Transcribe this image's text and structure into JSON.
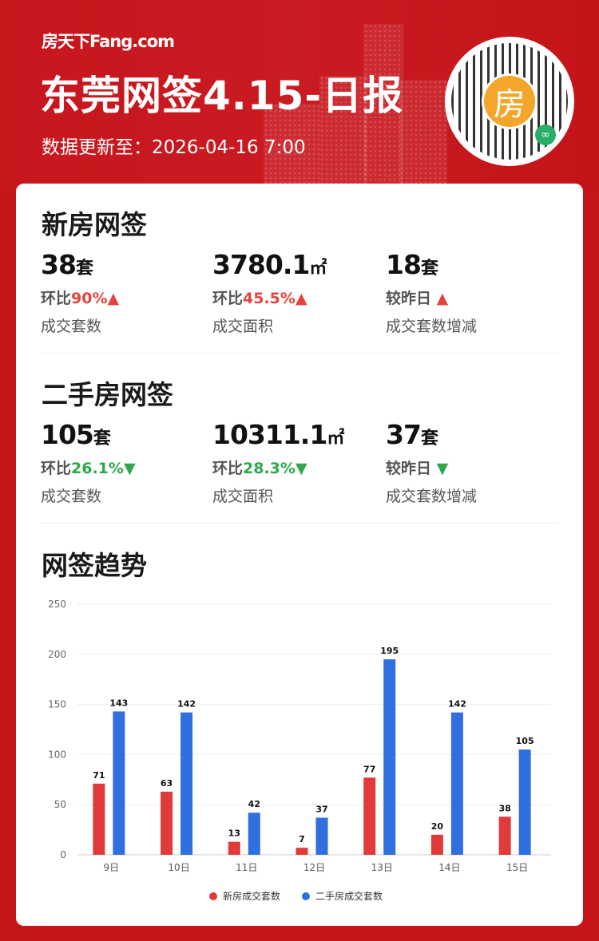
{
  "header": {
    "logo": "房天下Fang.com",
    "title": "东莞网签4.15-日报",
    "updated": "数据更新至：2026-04-16 7:00",
    "qr_center": "房"
  },
  "new_house": {
    "title": "新房网签",
    "stats": [
      {
        "value": "38",
        "unit": "套",
        "prefix": "环比",
        "change": "90%",
        "dir": "up",
        "label": "成交套数"
      },
      {
        "value": "3780.1",
        "unit": "㎡",
        "prefix": "环比",
        "change": "45.5%",
        "dir": "up",
        "label": "成交面积"
      },
      {
        "value": "18",
        "unit": "套",
        "prefix": "较昨日",
        "change": "",
        "dir": "up",
        "label": "成交套数增减"
      }
    ]
  },
  "second_house": {
    "title": "二手房网签",
    "stats": [
      {
        "value": "105",
        "unit": "套",
        "prefix": "环比",
        "change": "26.1%",
        "dir": "down",
        "label": "成交套数"
      },
      {
        "value": "10311.1",
        "unit": "㎡",
        "prefix": "环比",
        "change": "28.3%",
        "dir": "down",
        "label": "成交面积"
      },
      {
        "value": "37",
        "unit": "套",
        "prefix": "较昨日",
        "change": "",
        "dir": "down",
        "label": "成交套数增减"
      }
    ]
  },
  "trend": {
    "title": "网签趋势"
  },
  "chart_data": {
    "type": "bar",
    "title": "",
    "xlabel": "",
    "ylabel": "",
    "categories": [
      "9日",
      "10日",
      "11日",
      "12日",
      "13日",
      "14日",
      "15日"
    ],
    "series": [
      {
        "name": "新房成交套数",
        "color": "#e03a3a",
        "values": [
          71,
          63,
          13,
          7,
          77,
          20,
          38
        ]
      },
      {
        "name": "二手房成交套数",
        "color": "#2f6fe0",
        "values": [
          143,
          142,
          42,
          37,
          195,
          142,
          105
        ]
      }
    ],
    "ylim": [
      0,
      250
    ],
    "yticks": [
      0,
      50,
      100,
      150,
      200,
      250
    ],
    "grid": true,
    "legend": "bottom"
  }
}
